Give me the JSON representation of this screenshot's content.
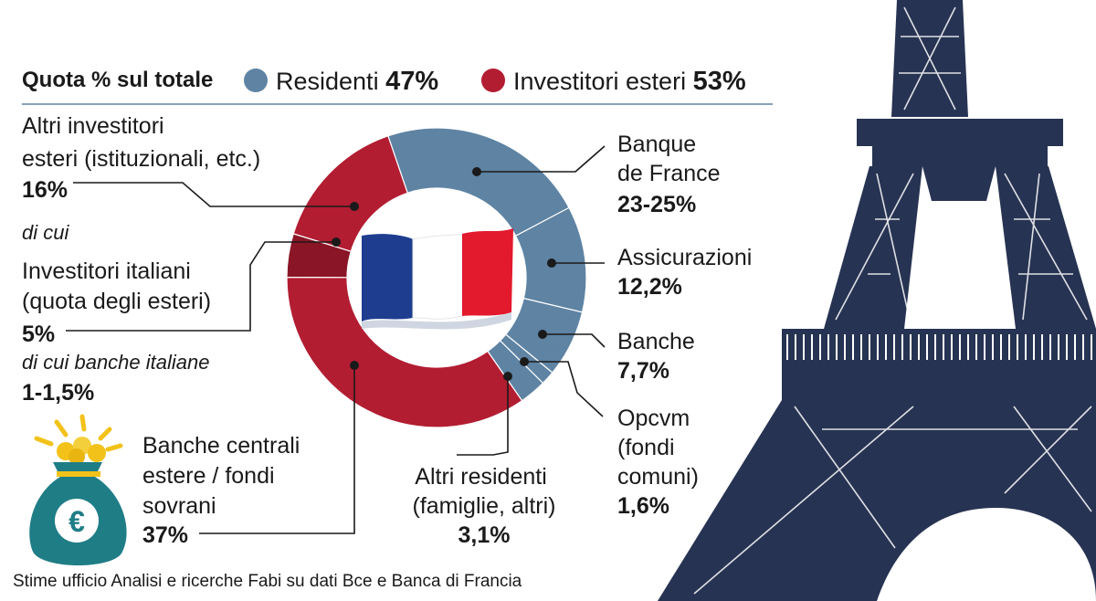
{
  "legend": {
    "title": "Quota % sul totale",
    "residents_label": "Residenti",
    "residents_pct": "47%",
    "foreign_label": "Investitori esteri",
    "foreign_pct": "53%"
  },
  "colors": {
    "residents": "#5e83a3",
    "foreign": "#b21d32",
    "italian": "#8a1526",
    "tower": "#273352",
    "flag_blue": "#1e3d8f",
    "flag_red": "#e3192d"
  },
  "labels": {
    "altri_esteri": [
      "Altri investitori",
      "esteri (istituzionali, etc.)"
    ],
    "altri_esteri_pct": "16%",
    "di_cui": "di cui",
    "italiani": [
      "Investitori italiani",
      "(quota degli esteri)"
    ],
    "italiani_pct": "5%",
    "banche_italiane": "di cui banche italiane",
    "banche_italiane_pct": "1-1,5%",
    "banche_centrali": [
      "Banche centrali",
      "estere / fondi",
      "sovrani"
    ],
    "banche_centrali_pct": "37%",
    "banque_de_france": [
      "Banque",
      "de France"
    ],
    "banque_de_france_pct": "23-25%",
    "assicurazioni": "Assicurazioni",
    "assicurazioni_pct": "12,2%",
    "banche": "Banche",
    "banche_pct": "7,7%",
    "opcvm": [
      "Opcvm",
      "(fondi",
      "comuni)"
    ],
    "opcvm_pct": "1,6%",
    "altri_residenti": [
      "Altri residenti",
      "(famiglie, altri)"
    ],
    "altri_residenti_pct": "3,1%"
  },
  "source": "Stime ufficio Analisi e ricerche Fabi su dati Bce e Banca di Francia",
  "icons": {
    "money_bag": "money-bag-icon",
    "euro": "euro-icon",
    "flag": "france-flag-icon",
    "tower": "eiffel-tower-icon"
  },
  "chart_data": {
    "type": "pie",
    "variant": "donut",
    "title": "Quota % sul totale",
    "groups": [
      {
        "name": "Residenti",
        "value": 47
      },
      {
        "name": "Investitori esteri",
        "value": 53
      }
    ],
    "slices": [
      {
        "label": "Banque de France",
        "display": "23-25%",
        "value": 24,
        "group": "Residenti"
      },
      {
        "label": "Assicurazioni",
        "display": "12,2%",
        "value": 12.2,
        "group": "Residenti"
      },
      {
        "label": "Banche",
        "display": "7,7%",
        "value": 7.7,
        "group": "Residenti"
      },
      {
        "label": "Opcvm (fondi comuni)",
        "display": "1,6%",
        "value": 1.6,
        "group": "Residenti"
      },
      {
        "label": "Altri residenti (famiglie, altri)",
        "display": "3,1%",
        "value": 3.1,
        "group": "Residenti"
      },
      {
        "label": "Banche centrali estere / fondi sovrani",
        "display": "37%",
        "value": 37,
        "group": "Investitori esteri"
      },
      {
        "label": "Investitori italiani (quota degli esteri)",
        "display": "5%",
        "value": 5,
        "group": "Investitori esteri"
      },
      {
        "label": "Altri investitori esteri (istituzionali, etc.)",
        "display": "16%",
        "value": 16,
        "group": "Investitori esteri"
      }
    ],
    "legend_position": "top"
  }
}
